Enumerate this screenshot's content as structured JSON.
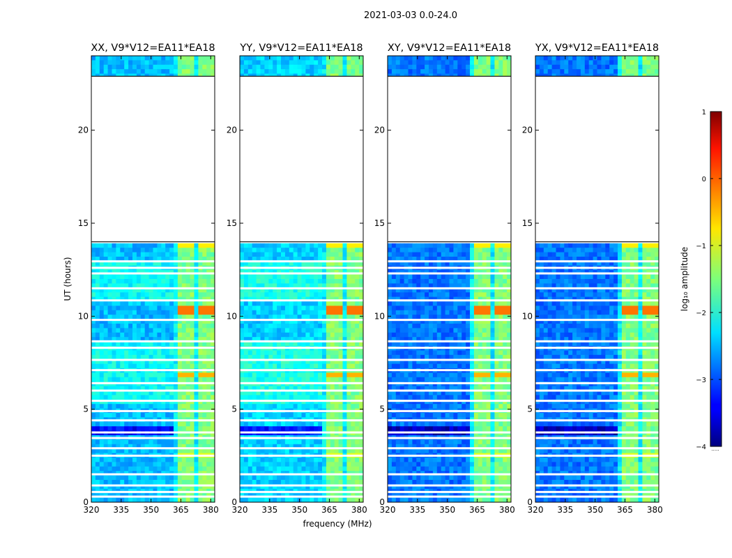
{
  "figure": {
    "suptitle": "2021-03-03 0.0-24.0"
  },
  "chart_data": {
    "type": "heatmap",
    "xlabel": "frequency (MHz)",
    "ylabel": "UT (hours)",
    "xlim": [
      320,
      382
    ],
    "ylim": [
      0,
      24
    ],
    "xticks": [
      320,
      335,
      350,
      365,
      380
    ],
    "yticks": [
      0,
      5,
      10,
      15,
      20
    ],
    "panels": [
      {
        "title": "XX, V9*V12=EA11*EA18",
        "background_level": -2.45
      },
      {
        "title": "YY, V9*V12=EA11*EA18",
        "background_level": -2.35
      },
      {
        "title": "XY, V9*V12=EA11*EA18",
        "background_level": -2.8
      },
      {
        "title": "YX, V9*V12=EA11*EA18",
        "background_level": -2.8
      }
    ],
    "data_gaps_hours": [
      [
        14.0,
        22.9
      ]
    ],
    "flagged_rows_hours": [
      0.3,
      0.55,
      0.9,
      1.5,
      2.5,
      2.9,
      3.45,
      3.75,
      4.4,
      4.9,
      5.45,
      6.0,
      6.4,
      7.1,
      7.65,
      8.3,
      8.65,
      9.8,
      10.85,
      11.5,
      12.3,
      12.6,
      12.95
    ],
    "rfi_band_mhz": [
      361,
      381
    ],
    "rfi_channels_mhz": [
      [
        363,
        367
      ],
      [
        368.5,
        372
      ],
      [
        373.5,
        377.5
      ],
      [
        378.5,
        381
      ]
    ],
    "rfi_bursts": [
      {
        "ut_start": 13.7,
        "ut_end": 13.95,
        "level": -0.8
      },
      {
        "ut_start": 10.2,
        "ut_end": 10.55,
        "level": -0.2
      },
      {
        "ut_start": 6.6,
        "ut_end": 7.0,
        "level": -0.5
      },
      {
        "ut_start": 2.45,
        "ut_end": 2.65,
        "level": -1.0
      }
    ],
    "colorbar": {
      "label": "log₁₀ amplitude",
      "ticks": [
        1,
        0,
        -1,
        -2,
        -3,
        -4
      ],
      "range": [
        -4,
        1
      ],
      "colormap": "jet",
      "extend_label": "·····"
    }
  }
}
